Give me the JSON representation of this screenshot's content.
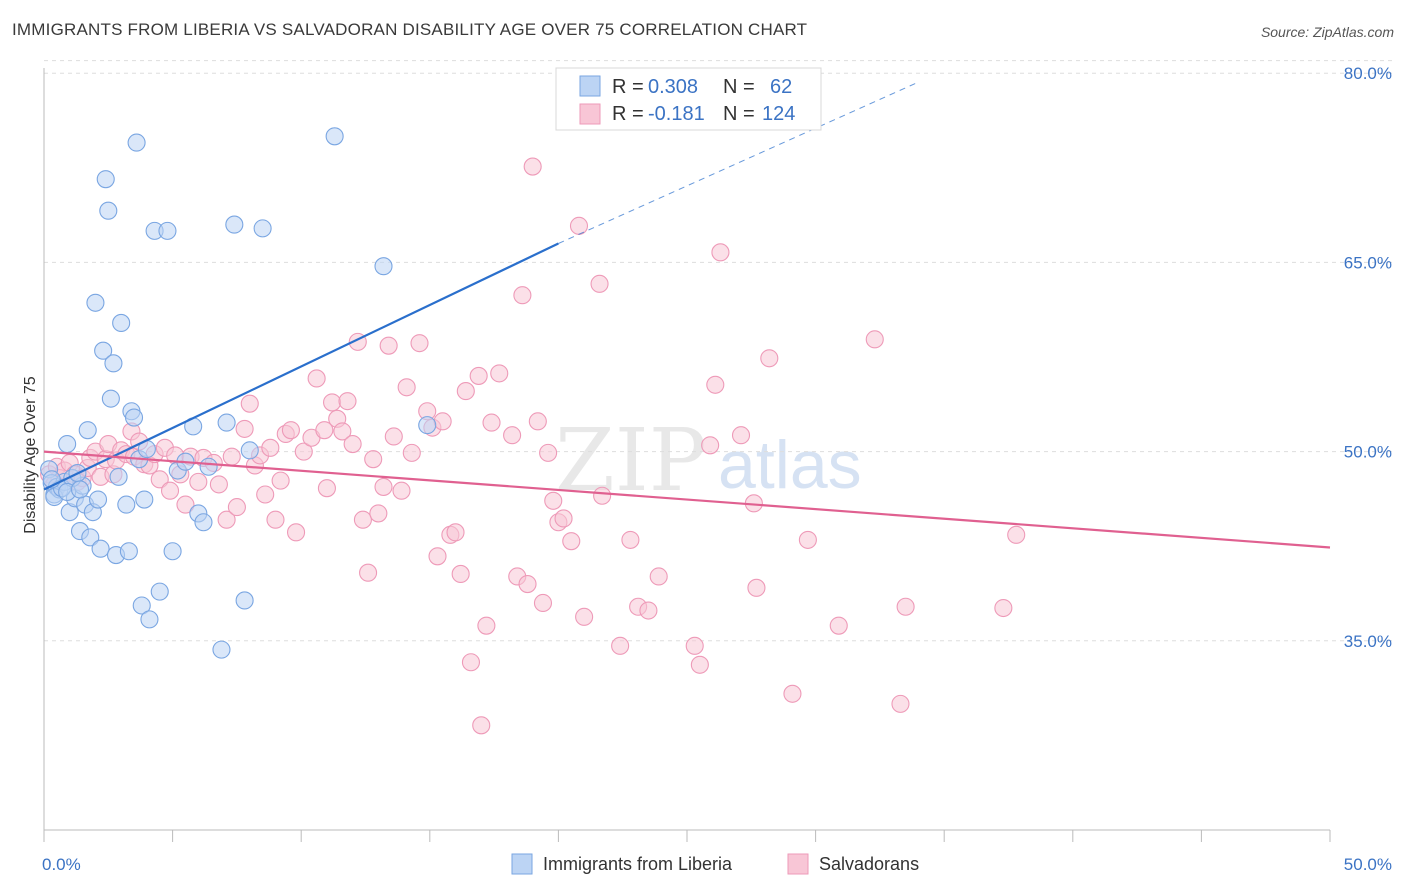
{
  "title": "IMMIGRANTS FROM LIBERIA VS SALVADORAN DISABILITY AGE OVER 75 CORRELATION CHART",
  "source": "Source: ZipAtlas.com",
  "watermark": {
    "zip": "ZIP",
    "atlas": "atlas"
  },
  "colors": {
    "blue": "#6e9fe0",
    "blue_line": "#2a6fcc",
    "pink": "#ee8faf",
    "pink_line": "#e06090",
    "tick_text": "#3b73c4",
    "grid": "#dddddd"
  },
  "legend_top": {
    "rows": [
      {
        "r_label": "R =",
        "r_value": "0.308",
        "n_label": "N =",
        "n_value": "62"
      },
      {
        "r_label": "R =",
        "r_value": "-0.181",
        "n_label": "N =",
        "n_value": "124"
      }
    ]
  },
  "legend_bottom": [
    "Immigrants from Liberia",
    "Salvadorans"
  ],
  "chart_data": {
    "type": "scatter",
    "xlabel": "",
    "ylabel": "Disability Age Over 75",
    "xlim": [
      0,
      50
    ],
    "ylim": [
      20,
      82
    ],
    "x_tick_labels": [
      {
        "value": 0,
        "label": "0.0%"
      },
      {
        "value": 50,
        "label": "50.0%"
      }
    ],
    "y_tick_labels": [
      {
        "value": 80,
        "label": "80.0%"
      },
      {
        "value": 65,
        "label": "65.0%"
      },
      {
        "value": 50,
        "label": "50.0%"
      },
      {
        "value": 35,
        "label": "35.0%"
      }
    ],
    "grid": "horizontal dashed",
    "legend_position": "top-center",
    "series": [
      {
        "name": "Immigrants from Liberia",
        "color": "#6e9fe0",
        "trend": {
          "x": [
            0,
            20
          ],
          "y": [
            47.0,
            66.5
          ],
          "dashed_extension_to": [
            34,
            79.3
          ]
        },
        "points": [
          [
            0.2,
            48.6
          ],
          [
            0.3,
            47.5
          ],
          [
            0.4,
            46.6
          ],
          [
            0.5,
            47.2
          ],
          [
            0.6,
            47.0
          ],
          [
            0.8,
            47.6
          ],
          [
            0.9,
            50.6
          ],
          [
            1.0,
            45.2
          ],
          [
            1.2,
            46.3
          ],
          [
            1.4,
            43.7
          ],
          [
            1.5,
            47.3
          ],
          [
            1.6,
            45.8
          ],
          [
            1.7,
            51.7
          ],
          [
            1.8,
            43.2
          ],
          [
            1.9,
            45.2
          ],
          [
            2.0,
            61.8
          ],
          [
            2.1,
            46.2
          ],
          [
            2.2,
            42.3
          ],
          [
            2.3,
            58.0
          ],
          [
            2.4,
            71.6
          ],
          [
            2.5,
            69.1
          ],
          [
            2.6,
            54.2
          ],
          [
            2.7,
            57.0
          ],
          [
            2.8,
            41.8
          ],
          [
            2.9,
            48.0
          ],
          [
            3.0,
            60.2
          ],
          [
            3.2,
            45.8
          ],
          [
            3.3,
            42.1
          ],
          [
            3.4,
            53.2
          ],
          [
            3.5,
            52.7
          ],
          [
            3.6,
            74.5
          ],
          [
            3.7,
            49.4
          ],
          [
            3.8,
            37.8
          ],
          [
            3.9,
            46.2
          ],
          [
            4.0,
            50.2
          ],
          [
            4.1,
            36.7
          ],
          [
            4.3,
            67.5
          ],
          [
            4.5,
            38.9
          ],
          [
            4.8,
            67.5
          ],
          [
            5.0,
            42.1
          ],
          [
            5.2,
            48.5
          ],
          [
            5.5,
            49.2
          ],
          [
            5.8,
            52.0
          ],
          [
            6.0,
            45.1
          ],
          [
            6.2,
            44.4
          ],
          [
            6.4,
            48.8
          ],
          [
            6.9,
            34.3
          ],
          [
            7.1,
            52.3
          ],
          [
            7.4,
            68.0
          ],
          [
            7.8,
            38.2
          ],
          [
            8.0,
            50.1
          ],
          [
            8.5,
            67.7
          ],
          [
            11.3,
            75.0
          ],
          [
            13.2,
            64.7
          ],
          [
            14.9,
            52.1
          ],
          [
            0.4,
            46.4
          ],
          [
            0.7,
            47.1
          ],
          [
            1.1,
            47.9
          ],
          [
            1.3,
            48.3
          ],
          [
            0.9,
            46.8
          ],
          [
            1.4,
            47.0
          ],
          [
            0.3,
            47.8
          ]
        ]
      },
      {
        "name": "Salvadorans",
        "color": "#ee8faf",
        "trend": {
          "x": [
            0,
            50
          ],
          "y": [
            50.0,
            42.4
          ]
        },
        "points": [
          [
            0.2,
            48.2
          ],
          [
            0.4,
            47.4
          ],
          [
            0.5,
            48.8
          ],
          [
            0.6,
            47.9
          ],
          [
            0.8,
            48.5
          ],
          [
            1.0,
            49.1
          ],
          [
            1.2,
            48.2
          ],
          [
            1.3,
            47.6
          ],
          [
            1.5,
            47.9
          ],
          [
            1.7,
            48.7
          ],
          [
            1.8,
            49.5
          ],
          [
            2.0,
            50.0
          ],
          [
            2.2,
            48.0
          ],
          [
            2.4,
            49.4
          ],
          [
            2.5,
            50.6
          ],
          [
            2.7,
            48.2
          ],
          [
            2.8,
            49.3
          ],
          [
            3.0,
            50.1
          ],
          [
            3.2,
            49.8
          ],
          [
            3.4,
            51.6
          ],
          [
            3.5,
            49.6
          ],
          [
            3.7,
            50.8
          ],
          [
            3.9,
            49.0
          ],
          [
            4.1,
            48.9
          ],
          [
            4.3,
            49.8
          ],
          [
            4.5,
            47.8
          ],
          [
            4.7,
            50.3
          ],
          [
            4.9,
            46.9
          ],
          [
            5.1,
            49.7
          ],
          [
            5.3,
            48.2
          ],
          [
            5.5,
            45.8
          ],
          [
            5.7,
            49.6
          ],
          [
            6.0,
            47.6
          ],
          [
            6.2,
            49.5
          ],
          [
            6.6,
            49.1
          ],
          [
            6.8,
            47.4
          ],
          [
            7.1,
            44.6
          ],
          [
            7.3,
            49.6
          ],
          [
            7.5,
            45.6
          ],
          [
            7.8,
            51.8
          ],
          [
            8.0,
            53.8
          ],
          [
            8.2,
            48.9
          ],
          [
            8.4,
            49.7
          ],
          [
            8.6,
            46.6
          ],
          [
            8.8,
            50.3
          ],
          [
            9.0,
            44.6
          ],
          [
            9.2,
            47.7
          ],
          [
            9.4,
            51.4
          ],
          [
            9.6,
            51.7
          ],
          [
            9.8,
            43.6
          ],
          [
            10.1,
            50.0
          ],
          [
            10.4,
            51.1
          ],
          [
            10.6,
            55.8
          ],
          [
            10.9,
            51.7
          ],
          [
            11.0,
            47.1
          ],
          [
            11.2,
            53.9
          ],
          [
            11.4,
            52.6
          ],
          [
            11.6,
            51.6
          ],
          [
            11.8,
            54.0
          ],
          [
            12.0,
            50.6
          ],
          [
            12.2,
            58.7
          ],
          [
            12.4,
            44.6
          ],
          [
            12.6,
            40.4
          ],
          [
            12.8,
            49.4
          ],
          [
            13.0,
            45.1
          ],
          [
            13.2,
            47.2
          ],
          [
            13.4,
            58.4
          ],
          [
            13.6,
            51.2
          ],
          [
            13.9,
            46.9
          ],
          [
            14.1,
            55.1
          ],
          [
            14.3,
            49.9
          ],
          [
            14.6,
            58.6
          ],
          [
            14.9,
            53.2
          ],
          [
            15.1,
            51.9
          ],
          [
            15.3,
            41.7
          ],
          [
            15.5,
            52.4
          ],
          [
            15.8,
            43.4
          ],
          [
            16.0,
            43.6
          ],
          [
            16.2,
            40.3
          ],
          [
            16.4,
            54.8
          ],
          [
            16.6,
            33.3
          ],
          [
            16.9,
            56.0
          ],
          [
            17.0,
            28.3
          ],
          [
            17.2,
            36.2
          ],
          [
            17.4,
            52.3
          ],
          [
            17.7,
            56.2
          ],
          [
            18.2,
            51.3
          ],
          [
            18.4,
            40.1
          ],
          [
            18.6,
            62.4
          ],
          [
            18.8,
            39.5
          ],
          [
            19.0,
            72.6
          ],
          [
            19.2,
            52.4
          ],
          [
            19.4,
            38.0
          ],
          [
            19.6,
            49.9
          ],
          [
            19.8,
            46.1
          ],
          [
            20.0,
            44.4
          ],
          [
            20.2,
            44.7
          ],
          [
            20.5,
            42.9
          ],
          [
            20.8,
            67.9
          ],
          [
            21.0,
            36.9
          ],
          [
            21.6,
            63.3
          ],
          [
            21.7,
            46.5
          ],
          [
            22.4,
            34.6
          ],
          [
            22.8,
            43.0
          ],
          [
            23.1,
            37.7
          ],
          [
            23.5,
            37.4
          ],
          [
            23.9,
            40.1
          ],
          [
            25.3,
            34.6
          ],
          [
            25.5,
            33.1
          ],
          [
            25.9,
            50.5
          ],
          [
            26.1,
            55.3
          ],
          [
            26.3,
            65.8
          ],
          [
            27.1,
            51.3
          ],
          [
            27.6,
            45.9
          ],
          [
            27.7,
            39.2
          ],
          [
            28.2,
            57.4
          ],
          [
            29.7,
            43.0
          ],
          [
            29.1,
            30.8
          ],
          [
            30.9,
            36.2
          ],
          [
            32.3,
            58.9
          ],
          [
            33.5,
            37.7
          ],
          [
            33.3,
            30.0
          ],
          [
            37.3,
            37.6
          ],
          [
            37.8,
            43.4
          ]
        ]
      }
    ]
  }
}
